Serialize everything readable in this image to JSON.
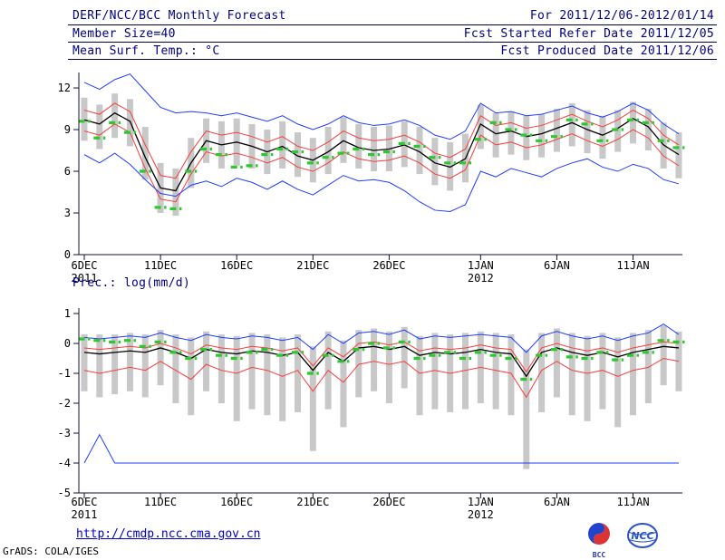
{
  "header": {
    "title": "DERF/NCC/BCC Monthly Forecast",
    "member_size": "Member Size=40",
    "var_label": "Mean Surf. Temp.: °C",
    "for_range": "For 2011/12/06-2012/01/14",
    "fcst_started": "Fcst Started Refer Date 2011/12/05",
    "fcst_produced": "Fcst Produced Date 2011/12/06"
  },
  "footer": {
    "url": "http://cmdp.ncc.cma.gov.cn",
    "credit": "GrADS: COLA/IGES",
    "logo_bcc": "BCC",
    "logo_ncc": "NCC"
  },
  "colors": {
    "text": "#000080",
    "axis": "#101030",
    "bar": "#c8c8c8",
    "blue": "#1e3cff",
    "red": "#fa3c3c",
    "black": "#000000",
    "green": "#2ec82e",
    "url_blue": "#0000d0"
  },
  "chart_data": [
    {
      "type": "line",
      "title": "Mean Surf. Temp.: °C",
      "xlabel": "",
      "ylabel": "",
      "ylim": [
        0,
        13.2
      ],
      "yticks": [
        0,
        3,
        6,
        9,
        12
      ],
      "n": 40,
      "xticks": [
        {
          "day": 0,
          "label": "6DEC",
          "year": "2011"
        },
        {
          "day": 5,
          "label": "11DEC"
        },
        {
          "day": 10,
          "label": "16DEC"
        },
        {
          "day": 15,
          "label": "21DEC"
        },
        {
          "day": 20,
          "label": "26DEC"
        },
        {
          "day": 26,
          "label": "1JAN",
          "year": "2012"
        },
        {
          "day": 31,
          "label": "6JAN"
        },
        {
          "day": 36,
          "label": "11JAN"
        }
      ],
      "series": [
        {
          "name": "ensemble-max",
          "color": "#1e3cff",
          "width": 1,
          "values": [
            12.4,
            11.9,
            12.6,
            13.0,
            11.8,
            10.6,
            10.2,
            10.3,
            10.2,
            10.0,
            10.2,
            9.9,
            9.6,
            10.0,
            9.4,
            9.0,
            9.4,
            10.0,
            9.5,
            9.3,
            9.4,
            9.7,
            9.3,
            8.6,
            8.3,
            8.9,
            10.9,
            10.2,
            10.3,
            10.0,
            10.1,
            10.4,
            10.7,
            10.2,
            9.9,
            10.3,
            10.9,
            10.4,
            9.4,
            8.7
          ]
        },
        {
          "name": "upper-quartile",
          "color": "#fa3c3c",
          "width": 1,
          "values": [
            10.4,
            10.1,
            10.9,
            10.3,
            7.9,
            5.7,
            5.5,
            7.4,
            8.9,
            8.6,
            8.8,
            8.5,
            8.1,
            8.5,
            7.8,
            7.5,
            8.1,
            8.9,
            8.4,
            8.2,
            8.3,
            8.6,
            8.1,
            7.3,
            7.0,
            7.6,
            10.0,
            9.3,
            9.5,
            9.1,
            9.3,
            9.7,
            10.1,
            9.6,
            9.2,
            9.7,
            10.4,
            9.8,
            8.6,
            7.9
          ]
        },
        {
          "name": "ensemble-mean",
          "color": "#000000",
          "width": 1.3,
          "values": [
            9.7,
            9.4,
            10.2,
            9.6,
            7.0,
            4.8,
            4.6,
            6.6,
            8.2,
            7.9,
            8.1,
            7.8,
            7.4,
            7.8,
            7.1,
            6.8,
            7.4,
            8.2,
            7.7,
            7.5,
            7.6,
            7.9,
            7.4,
            6.6,
            6.3,
            6.9,
            9.4,
            8.7,
            8.9,
            8.5,
            8.7,
            9.1,
            9.5,
            9.0,
            8.6,
            9.1,
            9.8,
            9.2,
            7.9,
            7.2
          ]
        },
        {
          "name": "lower-quartile",
          "color": "#fa3c3c",
          "width": 1,
          "values": [
            8.9,
            8.6,
            9.4,
            8.8,
            6.2,
            4.0,
            3.8,
            5.8,
            7.4,
            7.1,
            7.3,
            7.0,
            6.6,
            7.0,
            6.3,
            6.0,
            6.6,
            7.4,
            6.9,
            6.7,
            6.8,
            7.1,
            6.6,
            5.8,
            5.5,
            6.1,
            8.6,
            7.9,
            8.1,
            7.7,
            7.9,
            8.3,
            8.7,
            8.2,
            7.8,
            8.3,
            9.0,
            8.4,
            7.1,
            6.4
          ]
        },
        {
          "name": "ensemble-min",
          "color": "#1e3cff",
          "width": 1,
          "values": [
            7.2,
            6.6,
            7.3,
            6.5,
            5.4,
            4.4,
            4.2,
            5.0,
            5.3,
            4.9,
            5.5,
            5.2,
            4.7,
            5.3,
            4.7,
            4.3,
            5.0,
            5.7,
            5.3,
            5.4,
            5.2,
            4.6,
            3.8,
            3.2,
            3.1,
            3.6,
            6.0,
            5.6,
            6.2,
            5.9,
            5.6,
            6.2,
            6.6,
            6.9,
            6.3,
            6.0,
            6.5,
            6.2,
            5.4,
            5.1
          ]
        }
      ],
      "dashes": {
        "name": "median-dashes",
        "color": "#2ec82e",
        "values": [
          9.6,
          8.4,
          9.5,
          8.8,
          6.0,
          3.4,
          3.3,
          6.0,
          7.6,
          7.2,
          6.3,
          6.4,
          7.2,
          7.6,
          7.4,
          6.6,
          7.0,
          7.3,
          7.6,
          7.2,
          7.4,
          8.0,
          7.8,
          7.0,
          6.6,
          6.6,
          8.3,
          9.5,
          9.0,
          8.6,
          8.2,
          8.5,
          9.7,
          9.4,
          8.2,
          9.0,
          9.7,
          9.5,
          8.2,
          7.7
        ]
      },
      "bars": {
        "lo": [
          8.2,
          7.6,
          8.4,
          7.8,
          5.4,
          3.0,
          2.8,
          4.8,
          6.6,
          6.2,
          6.4,
          6.2,
          5.8,
          6.2,
          5.6,
          5.2,
          5.8,
          6.6,
          6.2,
          6.0,
          6.0,
          6.3,
          5.8,
          5.0,
          4.6,
          5.2,
          7.6,
          7.0,
          7.2,
          6.8,
          7.0,
          7.4,
          7.8,
          7.3,
          6.9,
          7.4,
          8.0,
          7.5,
          6.2,
          5.5
        ],
        "hi": [
          11.3,
          10.8,
          11.6,
          11.2,
          9.2,
          6.6,
          6.2,
          8.4,
          9.8,
          9.6,
          9.8,
          9.4,
          9.0,
          9.6,
          8.8,
          8.4,
          9.2,
          9.9,
          9.4,
          9.2,
          9.3,
          9.6,
          9.2,
          8.4,
          8.1,
          8.7,
          10.8,
          10.2,
          10.3,
          10.0,
          10.1,
          10.5,
          10.9,
          10.4,
          10.0,
          10.4,
          11.0,
          10.5,
          9.5,
          8.8
        ]
      }
    },
    {
      "type": "line",
      "title": "Prec.: log(mm/d)",
      "xlabel": "",
      "ylabel": "",
      "ylim": [
        -5,
        1
      ],
      "yticks": [
        1,
        0,
        -1,
        -2,
        -3,
        -4,
        -5
      ],
      "n": 40,
      "xticks": [
        {
          "day": 0,
          "label": "6DEC",
          "year": "2011"
        },
        {
          "day": 5,
          "label": "11DEC"
        },
        {
          "day": 10,
          "label": "16DEC"
        },
        {
          "day": 15,
          "label": "21DEC"
        },
        {
          "day": 20,
          "label": "26DEC"
        },
        {
          "day": 26,
          "label": "1JAN",
          "year": "2012"
        },
        {
          "day": 31,
          "label": "6JAN"
        },
        {
          "day": 36,
          "label": "11JAN"
        }
      ],
      "series": [
        {
          "name": "ensemble-max",
          "color": "#1e3cff",
          "width": 1,
          "values": [
            0.2,
            0.15,
            0.2,
            0.25,
            0.2,
            0.35,
            0.2,
            0.1,
            0.3,
            0.2,
            0.15,
            0.25,
            0.2,
            0.1,
            0.2,
            -0.2,
            0.3,
            0.0,
            0.35,
            0.4,
            0.3,
            0.45,
            0.15,
            0.25,
            0.2,
            0.25,
            0.3,
            0.25,
            0.2,
            -0.3,
            0.25,
            0.4,
            0.25,
            0.15,
            0.25,
            0.1,
            0.25,
            0.35,
            0.65,
            0.3
          ]
        },
        {
          "name": "upper-quartile",
          "color": "#fa3c3c",
          "width": 1,
          "values": [
            -0.15,
            -0.2,
            -0.15,
            -0.1,
            -0.15,
            0.0,
            -0.15,
            -0.35,
            -0.05,
            -0.15,
            -0.2,
            -0.1,
            -0.15,
            -0.25,
            -0.15,
            -0.75,
            -0.15,
            -0.45,
            0.0,
            0.05,
            -0.05,
            0.05,
            -0.25,
            -0.15,
            -0.2,
            -0.15,
            -0.05,
            -0.15,
            -0.2,
            -0.95,
            -0.15,
            0.0,
            -0.15,
            -0.25,
            -0.15,
            -0.3,
            -0.15,
            -0.05,
            0.05,
            0.0
          ]
        },
        {
          "name": "ensemble-mean",
          "color": "#000000",
          "width": 1.3,
          "values": [
            -0.3,
            -0.35,
            -0.3,
            -0.25,
            -0.3,
            -0.15,
            -0.3,
            -0.5,
            -0.2,
            -0.3,
            -0.35,
            -0.25,
            -0.3,
            -0.4,
            -0.3,
            -0.9,
            -0.3,
            -0.6,
            -0.15,
            -0.1,
            -0.2,
            -0.1,
            -0.4,
            -0.3,
            -0.35,
            -0.3,
            -0.2,
            -0.3,
            -0.35,
            -1.1,
            -0.3,
            -0.15,
            -0.3,
            -0.4,
            -0.3,
            -0.45,
            -0.3,
            -0.2,
            -0.1,
            -0.15
          ]
        },
        {
          "name": "lower-quartile",
          "color": "#fa3c3c",
          "width": 1,
          "values": [
            -0.9,
            -1.0,
            -0.9,
            -0.8,
            -0.9,
            -0.6,
            -0.9,
            -1.2,
            -0.7,
            -0.9,
            -1.0,
            -0.8,
            -0.9,
            -1.1,
            -0.9,
            -1.6,
            -0.9,
            -1.3,
            -0.7,
            -0.6,
            -0.7,
            -0.6,
            -1.0,
            -0.9,
            -1.0,
            -0.9,
            -0.8,
            -0.9,
            -1.0,
            -1.8,
            -0.9,
            -0.6,
            -0.9,
            -1.0,
            -0.9,
            -1.1,
            -0.9,
            -0.8,
            -0.5,
            -0.6
          ]
        },
        {
          "name": "ensemble-min",
          "color": "#1e3cff",
          "width": 1,
          "values": [
            -4,
            -3.05,
            -4,
            -4,
            -4,
            -4,
            -4,
            -4,
            -4,
            -4,
            -4,
            -4,
            -4,
            -4,
            -4,
            -4,
            -4,
            -4,
            -4,
            -4,
            -4,
            -4,
            -4,
            -4,
            -4,
            -4,
            -4,
            -4,
            -4,
            -4,
            -4,
            -4,
            -4,
            -4,
            -4,
            -4,
            -4,
            -4,
            -4,
            -4
          ]
        }
      ],
      "dashes": {
        "name": "median-dashes",
        "color": "#2ec82e",
        "values": [
          0.15,
          0.1,
          0.05,
          0.1,
          -0.1,
          0.05,
          -0.3,
          -0.5,
          -0.2,
          -0.4,
          -0.5,
          -0.3,
          -0.2,
          -0.4,
          -0.3,
          -1.0,
          -0.4,
          -0.6,
          -0.2,
          0.0,
          -0.15,
          0.05,
          -0.5,
          -0.4,
          -0.3,
          -0.5,
          -0.3,
          -0.4,
          -0.5,
          -1.2,
          -0.4,
          -0.2,
          -0.45,
          -0.5,
          -0.3,
          -0.55,
          -0.4,
          -0.3,
          0.1,
          0.05
        ]
      },
      "bars": {
        "lo": [
          -1.6,
          -1.8,
          -1.7,
          -1.6,
          -1.8,
          -1.4,
          -2.0,
          -2.4,
          -1.6,
          -2.0,
          -2.6,
          -2.2,
          -2.4,
          -2.6,
          -2.3,
          -3.6,
          -2.2,
          -2.8,
          -1.8,
          -1.6,
          -2.0,
          -1.5,
          -2.4,
          -2.2,
          -2.3,
          -2.2,
          -2.0,
          -2.2,
          -2.4,
          -4.2,
          -2.3,
          -1.8,
          -2.4,
          -2.6,
          -2.2,
          -2.8,
          -2.4,
          -2.0,
          -1.4,
          -1.6
        ],
        "hi": [
          0.3,
          0.3,
          0.3,
          0.35,
          0.3,
          0.45,
          0.3,
          0.2,
          0.4,
          0.3,
          0.25,
          0.35,
          0.3,
          0.2,
          0.3,
          -0.1,
          0.4,
          0.1,
          0.45,
          0.5,
          0.4,
          0.55,
          0.25,
          0.35,
          0.3,
          0.35,
          0.4,
          0.35,
          0.3,
          -0.2,
          0.35,
          0.5,
          0.35,
          0.25,
          0.35,
          0.2,
          0.35,
          0.45,
          0.6,
          0.4
        ]
      }
    }
  ]
}
